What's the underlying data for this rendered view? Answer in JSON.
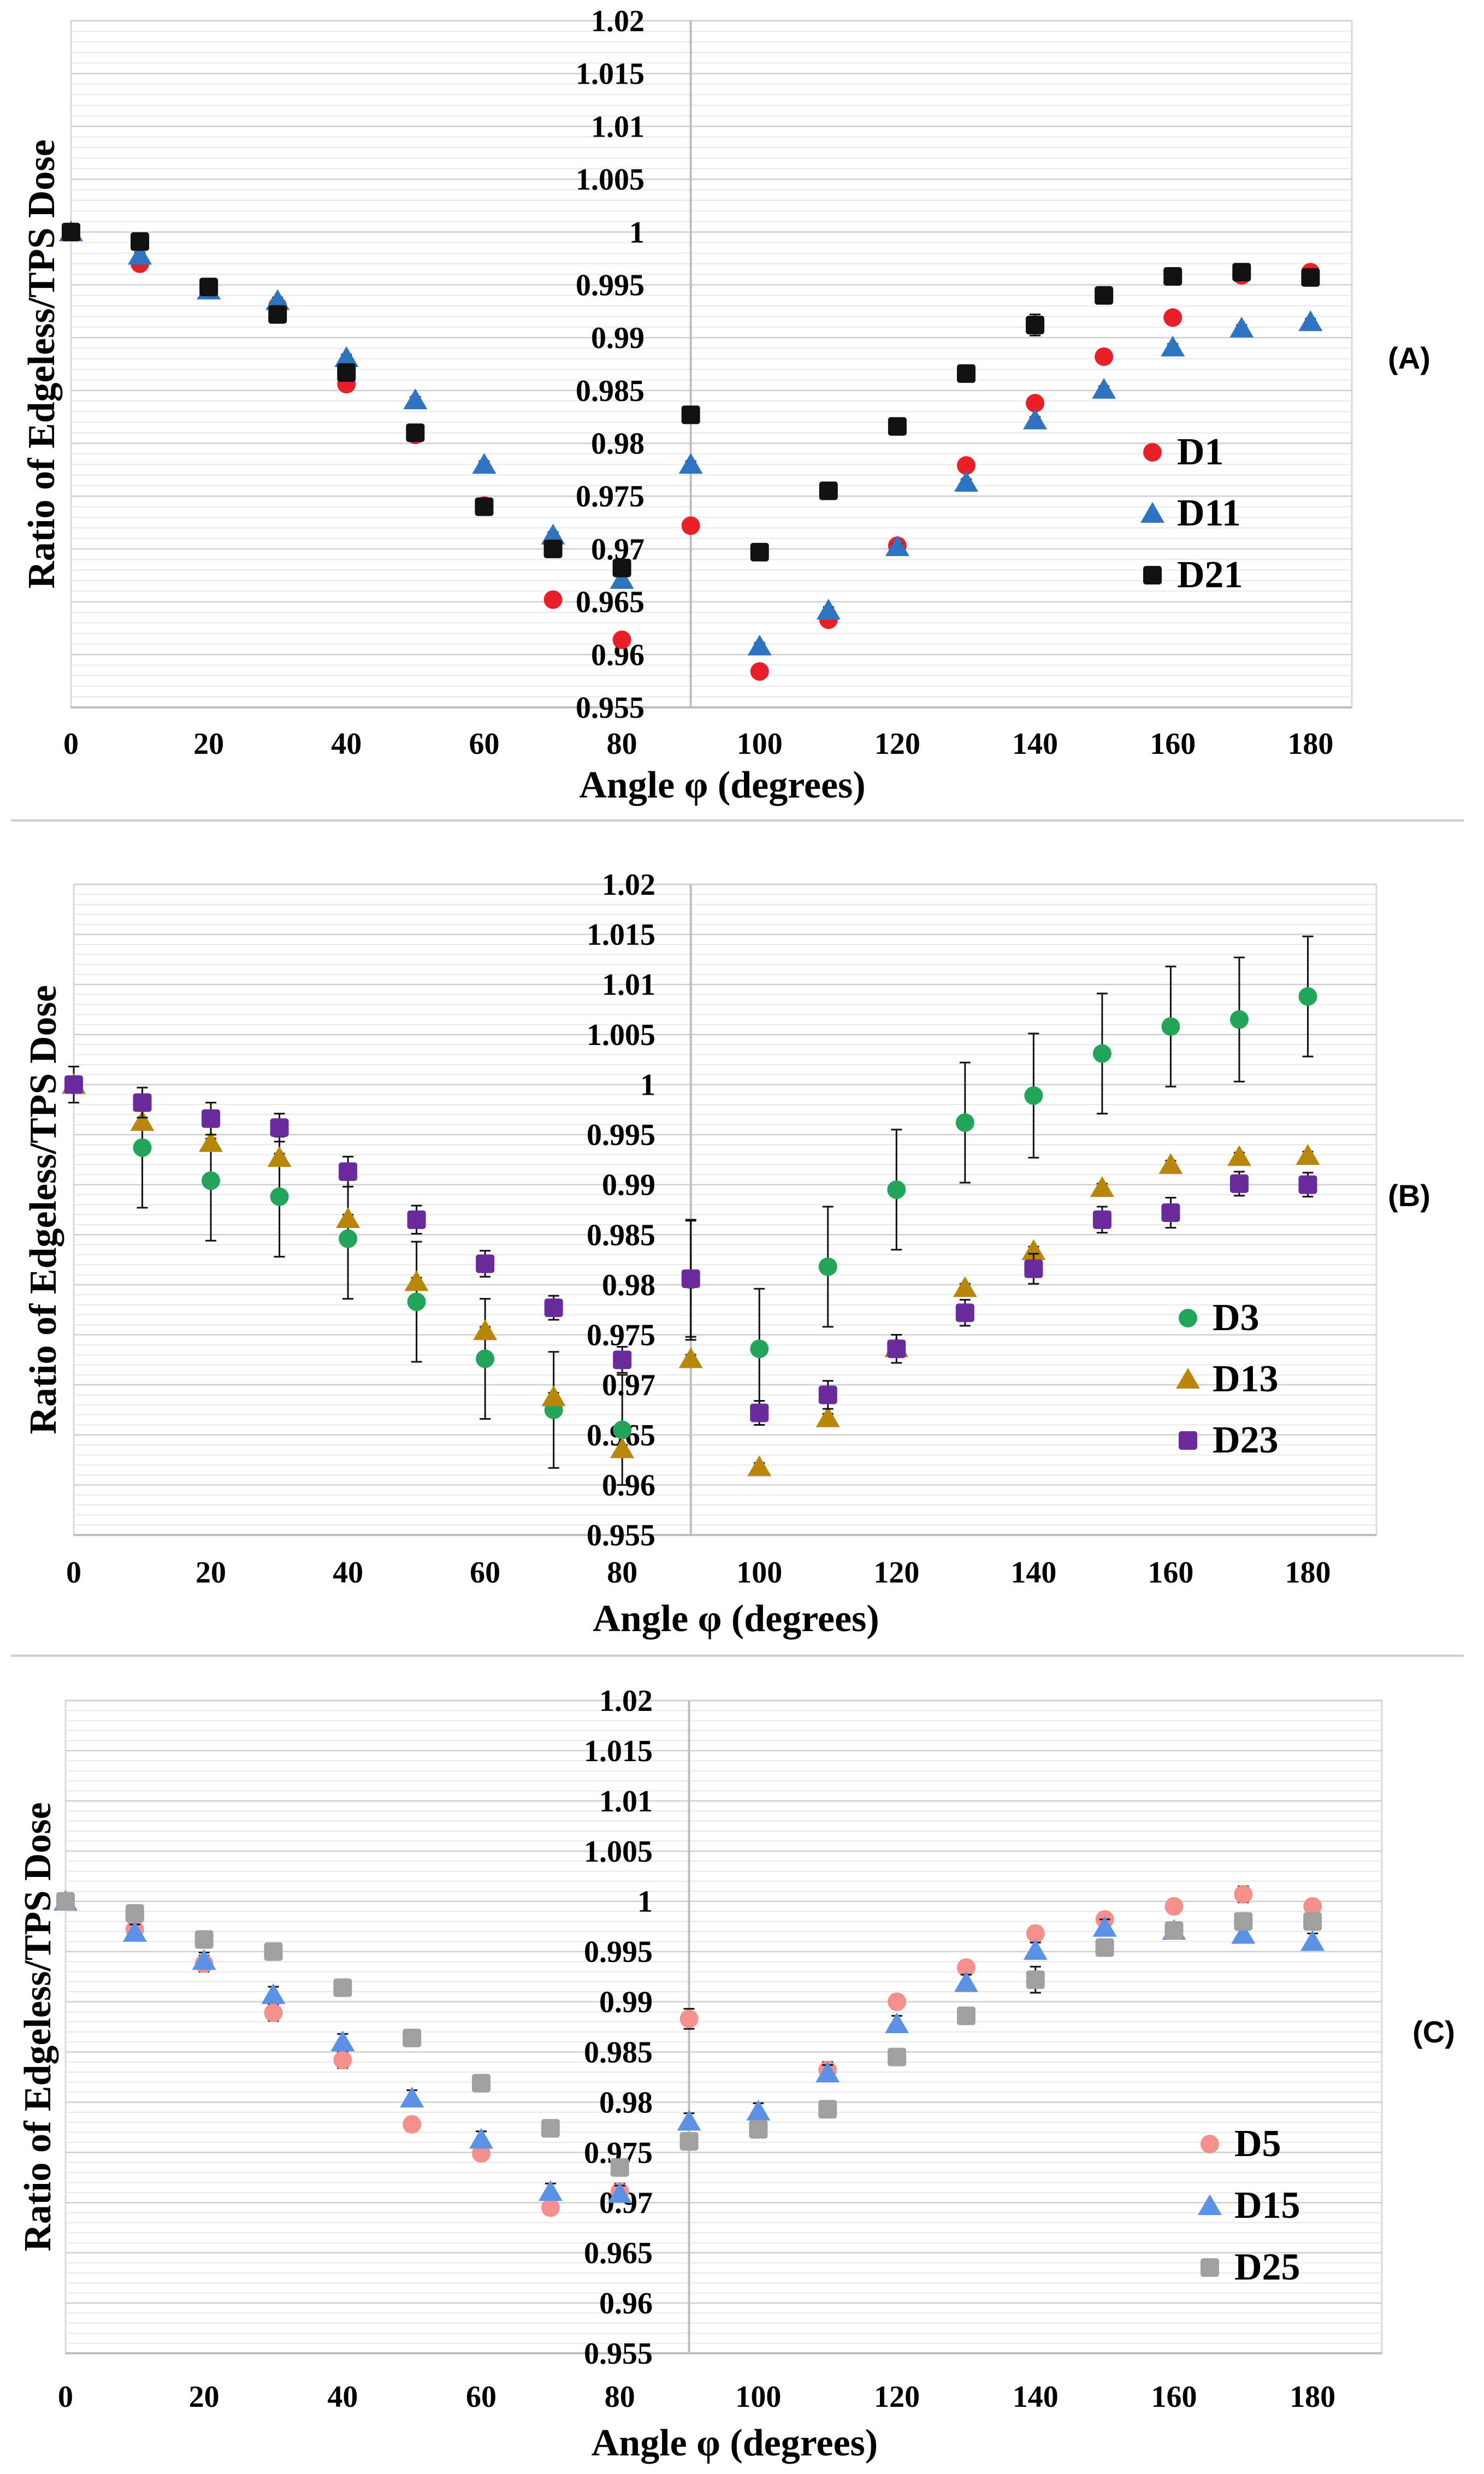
{
  "chart_data": [
    {
      "type": "scatter",
      "panel_label": "(A)",
      "xlabel": "Angle φ (degrees)",
      "ylabel": "Ratio of Edgeless/TPS Dose",
      "xlim": [
        0,
        186
      ],
      "ylim": [
        0.955,
        1.02
      ],
      "x_ticks": [
        0,
        20,
        40,
        60,
        80,
        100,
        120,
        140,
        160,
        180
      ],
      "x_tick_labels": [
        "0",
        "20",
        "40",
        "60",
        "80",
        "100",
        "120",
        "140",
        "160",
        "180"
      ],
      "y_ticks": [
        0.955,
        0.96,
        0.965,
        0.97,
        0.975,
        0.98,
        0.985,
        0.99,
        0.995,
        1,
        1.005,
        1.01,
        1.015,
        1.02
      ],
      "y_tick_labels": [
        "0.955",
        "0.96",
        "0.965",
        "0.97",
        "0.975",
        "0.98",
        "0.985",
        "0.99",
        "0.995",
        "1",
        "1.005",
        "1.01",
        "1.015",
        "1.02"
      ],
      "grid": true,
      "legend_position": "center-right",
      "x": [
        0,
        10,
        20,
        30,
        40,
        50,
        60,
        70,
        80,
        90,
        100,
        110,
        120,
        130,
        140,
        150,
        160,
        170,
        180
      ],
      "series": [
        {
          "name": "D1",
          "marker": "circle",
          "color": "#e8202a",
          "values": [
            1.0,
            0.997,
            0.9948,
            0.993,
            0.9856,
            0.9808,
            0.9741,
            0.9652,
            0.9614,
            0.9722,
            0.9584,
            0.9633,
            0.9703,
            0.9779,
            0.9838,
            0.9882,
            0.9919,
            0.9959,
            0.9962
          ],
          "errors": [
            0.0005,
            0.0003,
            0.0003,
            0.0003,
            0.0003,
            0.0003,
            0.0003,
            0.0003,
            0.0003,
            0.0006,
            0.0003,
            0.0003,
            0.0003,
            0.0003,
            0.0006,
            0.0003,
            0.0003,
            0.0003,
            0.0003
          ]
        },
        {
          "name": "D11",
          "marker": "triangle",
          "color": "#2f74c0",
          "values": [
            1.0,
            0.9978,
            0.9945,
            0.9935,
            0.9881,
            0.9841,
            0.978,
            0.9713,
            0.9671,
            0.978,
            0.9608,
            0.9642,
            0.9702,
            0.9763,
            0.9822,
            0.9851,
            0.9891,
            0.9909,
            0.9915
          ],
          "errors": [
            0.0005,
            0.0003,
            0.0003,
            0.0003,
            0.0003,
            0.0003,
            0.0003,
            0.0003,
            0.0003,
            0.0003,
            0.0003,
            0.0003,
            0.0003,
            0.0003,
            0.0003,
            0.0003,
            0.0003,
            0.0003,
            0.0003
          ]
        },
        {
          "name": "D21",
          "marker": "square",
          "color": "#111111",
          "values": [
            1.0,
            0.9991,
            0.9948,
            0.9922,
            0.9867,
            0.981,
            0.974,
            0.97,
            0.9682,
            0.9827,
            0.9697,
            0.9755,
            0.9816,
            0.9866,
            0.9912,
            0.994,
            0.9958,
            0.9962,
            0.9957
          ],
          "errors": [
            0.0005,
            0.0005,
            0.0005,
            0.0005,
            0.0005,
            0.0003,
            0.0003,
            0.0004,
            0.0006,
            0.0005,
            0.0004,
            0.0003,
            0.0003,
            0.0003,
            0.001,
            0.0004,
            0.0003,
            0.0004,
            0.0004
          ]
        }
      ]
    },
    {
      "type": "scatter",
      "panel_label": "(B)",
      "xlabel": "Angle φ (degrees)",
      "ylabel": "Ratio of Edgeless/TPS Dose",
      "xlim": [
        0,
        190
      ],
      "ylim": [
        0.955,
        1.02
      ],
      "x_ticks": [
        0,
        20,
        40,
        60,
        80,
        100,
        120,
        140,
        160,
        180
      ],
      "x_tick_labels": [
        "0",
        "20",
        "40",
        "60",
        "80",
        "100",
        "120",
        "140",
        "160",
        "180"
      ],
      "y_ticks": [
        0.955,
        0.96,
        0.965,
        0.97,
        0.975,
        0.98,
        0.985,
        0.99,
        0.995,
        1,
        1.005,
        1.01,
        1.015,
        1.02
      ],
      "y_tick_labels": [
        "0.955",
        "0.96",
        "0.965",
        "0.97",
        "0.975",
        "0.98",
        "0.985",
        "0.99",
        "0.995",
        "1",
        "1.005",
        "1.01",
        "1.015",
        "1.02"
      ],
      "grid": true,
      "legend_position": "center-right",
      "x": [
        0,
        10,
        20,
        30,
        40,
        50,
        60,
        70,
        80,
        90,
        100,
        110,
        120,
        130,
        140,
        150,
        160,
        170,
        180
      ],
      "series": [
        {
          "name": "D3",
          "marker": "circle",
          "color": "#22a55b",
          "values": [
            1.0,
            0.9937,
            0.9904,
            0.9888,
            0.9846,
            0.9783,
            0.9726,
            0.9675,
            0.9655,
            0.9805,
            0.9736,
            0.9818,
            0.9895,
            0.9962,
            0.9989,
            1.0031,
            1.0058,
            1.0065,
            1.0088
          ],
          "errors": [
            0.0018,
            0.006,
            0.006,
            0.006,
            0.006,
            0.006,
            0.006,
            0.0058,
            0.0055,
            0.006,
            0.006,
            0.006,
            0.006,
            0.006,
            0.0062,
            0.006,
            0.006,
            0.0062,
            0.006
          ]
        },
        {
          "name": "D13",
          "marker": "triangle",
          "color": "#b8860b",
          "values": [
            1.0,
            0.9963,
            0.9942,
            0.9927,
            0.9866,
            0.9803,
            0.9754,
            0.9688,
            0.9636,
            0.9726,
            0.9618,
            0.9667,
            0.9737,
            0.9797,
            0.9834,
            0.9897,
            0.992,
            0.9928,
            0.9929
          ],
          "errors": [
            0.0005,
            0.0004,
            0.0004,
            0.0004,
            0.0004,
            0.0004,
            0.0004,
            0.0004,
            0.0004,
            0.0004,
            0.0004,
            0.0004,
            0.0004,
            0.0004,
            0.0004,
            0.0004,
            0.0004,
            0.0004,
            0.0004
          ]
        },
        {
          "name": "D23",
          "marker": "square",
          "color": "#6a2c9c",
          "values": [
            1.0,
            0.9982,
            0.9966,
            0.9957,
            0.9913,
            0.9865,
            0.9821,
            0.9777,
            0.9725,
            0.9806,
            0.9672,
            0.969,
            0.9736,
            0.9772,
            0.9816,
            0.9865,
            0.9872,
            0.9901,
            0.99
          ],
          "errors": [
            0.0005,
            0.0015,
            0.0016,
            0.0014,
            0.0015,
            0.0014,
            0.0013,
            0.0012,
            0.0013,
            0.0058,
            0.0012,
            0.0014,
            0.0014,
            0.0013,
            0.0015,
            0.0013,
            0.0015,
            0.0012,
            0.0012
          ]
        }
      ]
    },
    {
      "type": "scatter",
      "panel_label": "(C)",
      "xlabel": "Angle φ (degrees)",
      "ylabel": "Ratio of Edgeless/TPS Dose",
      "xlim": [
        0,
        190
      ],
      "ylim": [
        0.955,
        1.02
      ],
      "x_ticks": [
        0,
        20,
        40,
        60,
        80,
        100,
        120,
        140,
        160,
        180
      ],
      "x_tick_labels": [
        "0",
        "20",
        "40",
        "60",
        "80",
        "100",
        "120",
        "140",
        "160",
        "180"
      ],
      "y_ticks": [
        0.955,
        0.96,
        0.965,
        0.97,
        0.975,
        0.98,
        0.985,
        0.99,
        0.995,
        1,
        1.005,
        1.01,
        1.015,
        1.02
      ],
      "y_tick_labels": [
        "0.955",
        "0.96",
        "0.965",
        "0.97",
        "0.975",
        "0.98",
        "0.985",
        "0.99",
        "0.995",
        "1",
        "1.005",
        "1.01",
        "1.015",
        "1.02"
      ],
      "grid": true,
      "legend_position": "bottom-right",
      "x": [
        0,
        10,
        20,
        30,
        40,
        50,
        60,
        70,
        80,
        90,
        100,
        110,
        120,
        130,
        140,
        150,
        160,
        170,
        180
      ],
      "series": [
        {
          "name": "D5",
          "marker": "circle",
          "color": "#f4908c",
          "values": [
            1.0,
            0.9972,
            0.9938,
            0.9889,
            0.9842,
            0.9778,
            0.9749,
            0.9695,
            0.9711,
            0.9883,
            0.9774,
            0.9832,
            0.99,
            0.9934,
            0.9968,
            0.9982,
            0.9995,
            1.0007,
            0.9995
          ],
          "errors": [
            0.0005,
            0.0008,
            0.0008,
            0.0008,
            0.0008,
            0.0007,
            0.0007,
            0.0007,
            0.0008,
            0.001,
            0.0007,
            0.0008,
            0.0007,
            0.0007,
            0.0007,
            0.0007,
            0.0007,
            0.0008,
            0.0007
          ]
        },
        {
          "name": "D15",
          "marker": "triangle",
          "color": "#5b92e5",
          "values": [
            1.0,
            0.9969,
            0.9941,
            0.9907,
            0.986,
            0.9804,
            0.9763,
            0.9711,
            0.9709,
            0.9781,
            0.9791,
            0.9829,
            0.9878,
            0.9919,
            0.9951,
            0.9974,
            0.9971,
            0.9967,
            0.996
          ],
          "errors": [
            0.0005,
            0.0008,
            0.0008,
            0.0008,
            0.0008,
            0.0008,
            0.0008,
            0.0008,
            0.0008,
            0.0008,
            0.0008,
            0.0008,
            0.0008,
            0.0008,
            0.0008,
            0.0008,
            0.0008,
            0.0008,
            0.0008
          ]
        },
        {
          "name": "D25",
          "marker": "square",
          "color": "#a0a0a0",
          "values": [
            1.0,
            0.9988,
            0.9962,
            0.995,
            0.9914,
            0.9864,
            0.9819,
            0.9774,
            0.9735,
            0.9761,
            0.9773,
            0.9793,
            0.9845,
            0.9886,
            0.9922,
            0.9954,
            0.9971,
            0.998,
            0.998
          ],
          "errors": [
            0.0005,
            0.0006,
            0.0006,
            0.0006,
            0.0006,
            0.0008,
            0.0006,
            0.0006,
            0.0006,
            0.0006,
            0.0008,
            0.0008,
            0.0006,
            0.0006,
            0.0013,
            0.0006,
            0.0008,
            0.0006,
            0.0006
          ]
        }
      ]
    }
  ]
}
